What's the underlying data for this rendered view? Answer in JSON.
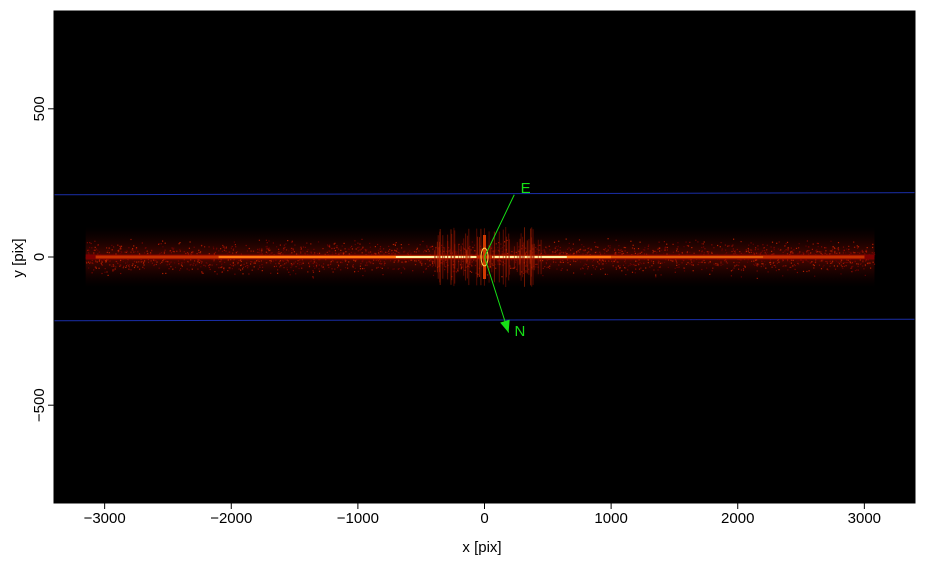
{
  "chart_data": {
    "type": "heatmap",
    "title": "",
    "xlabel": "x [pix]",
    "ylabel": "y [pix]",
    "xlim": [
      -3400,
      3400
    ],
    "ylim": [
      -830,
      830
    ],
    "x_ticks": [
      -3000,
      -2000,
      -1000,
      0,
      1000,
      2000,
      3000
    ],
    "x_tick_labels": [
      "−3000",
      "−2000",
      "−1000",
      "0",
      "1000",
      "2000",
      "3000"
    ],
    "y_ticks": [
      -500,
      0,
      500
    ],
    "y_tick_labels": [
      "−500",
      "0",
      "500"
    ],
    "grid": false,
    "background_color": "#000000",
    "trace": {
      "x_range": [
        -3150,
        3080
      ],
      "y_center": 0,
      "colormap": "hot",
      "peak_color": "#fff1a0",
      "mid_color": "#ff7a10",
      "low_color": "#7a0000"
    },
    "aperture_lines": {
      "color": "#1a2ea8",
      "lines": [
        {
          "x": [
            -3400,
            3400
          ],
          "y": [
            210,
            217
          ]
        },
        {
          "x": [
            -3400,
            3400
          ],
          "y": [
            -215,
            -210
          ]
        }
      ]
    },
    "compass": {
      "color": "#16e016",
      "origin": [
        0,
        0
      ],
      "arrows": [
        {
          "label": "E",
          "tip": [
            235,
            210
          ],
          "label_pos": [
            325,
            232
          ]
        },
        {
          "label": "N",
          "tip": [
            190,
            -255
          ],
          "label_pos": [
            280,
            -250
          ]
        }
      ]
    },
    "source_ellipse": {
      "center": [
        0,
        0
      ],
      "width": 55,
      "height": 60,
      "color": "#ffd84a"
    }
  }
}
